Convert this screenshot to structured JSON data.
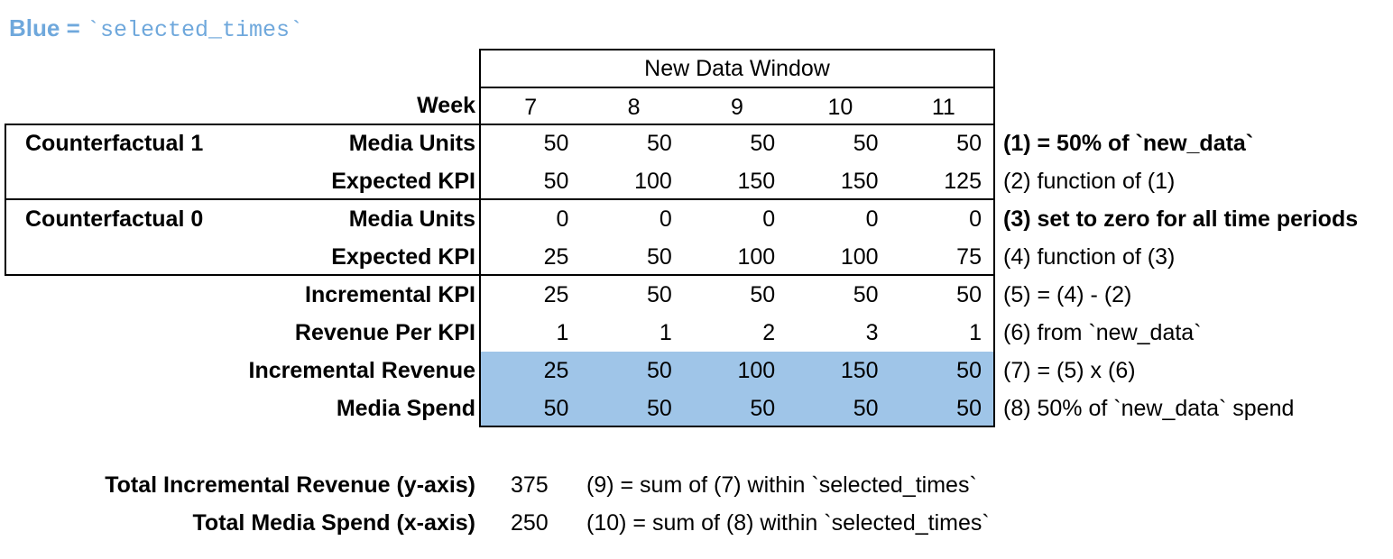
{
  "legend": {
    "prefix": "Blue = ",
    "code": "`selected_times`",
    "color": "#6fa8dc"
  },
  "table": {
    "header": "New Data Window",
    "week_label": "Week",
    "weeks": [
      "7",
      "8",
      "9",
      "10",
      "11"
    ],
    "group_labels": [
      {
        "label": "Counterfactual 1"
      },
      {
        "label": "Counterfactual 0"
      }
    ],
    "highlight_color": "#9fc5e8",
    "rows": [
      {
        "label": "Media Units",
        "values": [
          50,
          50,
          50,
          50,
          50
        ],
        "note": "(1) = 50% of `new_data`",
        "note_bold": true,
        "highlighted": false
      },
      {
        "label": "Expected KPI",
        "values": [
          50,
          100,
          150,
          150,
          125
        ],
        "note": "(2) function of (1)",
        "note_bold": false,
        "highlighted": false
      },
      {
        "label": "Media Units",
        "values": [
          0,
          0,
          0,
          0,
          0
        ],
        "note": "(3) set to zero for all time periods",
        "note_bold": true,
        "highlighted": false
      },
      {
        "label": "Expected KPI",
        "values": [
          25,
          50,
          100,
          100,
          75
        ],
        "note": "(4) function of (3)",
        "note_bold": false,
        "highlighted": false
      },
      {
        "label": "Incremental KPI",
        "values": [
          25,
          50,
          50,
          50,
          50
        ],
        "note": "(5) = (4) - (2)",
        "note_bold": false,
        "highlighted": false
      },
      {
        "label": "Revenue Per KPI",
        "values": [
          1,
          1,
          2,
          3,
          1
        ],
        "note": "(6) from `new_data`",
        "note_bold": false,
        "highlighted": false
      },
      {
        "label": "Incremental Revenue",
        "values": [
          25,
          50,
          100,
          150,
          50
        ],
        "note": "(7) = (5) x (6)",
        "note_bold": false,
        "highlighted": true
      },
      {
        "label": "Media Spend",
        "values": [
          50,
          50,
          50,
          50,
          50
        ],
        "note": "(8) 50% of `new_data` spend",
        "note_bold": false,
        "highlighted": true
      }
    ]
  },
  "summary": {
    "rows": [
      {
        "label": "Total Incremental Revenue (y-axis)",
        "value": "375",
        "note": "(9) = sum of (7) within `selected_times`"
      },
      {
        "label": "Total Media Spend (x-axis)",
        "value": "250",
        "note": "(10) = sum of (8) within `selected_times`"
      }
    ]
  }
}
